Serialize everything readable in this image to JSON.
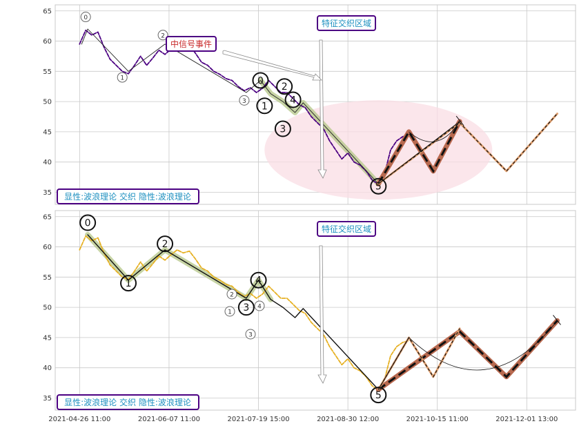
{
  "colors": {
    "grid": "#c8c8c8",
    "axis_frame": "#c8c8c8",
    "price_top": "#4b0082",
    "price_bottom": "#e6b022",
    "wave_fill": "#b9c98f",
    "salmon": "#f08080",
    "brown": "#b86a50",
    "dark_peach": "#e0a070",
    "badge_border": "#4b0082",
    "badge_text_blue": "#1e90c0",
    "badge_text_red": "#c82828",
    "ellipse": "#fadde4"
  },
  "x_tick_labels": [
    "2021-04-26 11:00",
    "2021-06-07 11:00",
    "2021-07-19 15:00",
    "2021-08-30 12:00",
    "2021-10-15 11:00",
    "2021-12-01 13:00"
  ],
  "y_tick_labels": [
    "35",
    "40",
    "45",
    "50",
    "55",
    "60",
    "65"
  ],
  "panels": [
    {
      "badge_feature": "特征交织区域",
      "badge_bottom": "显性:波浪理论 交织 隐性:波浪理论",
      "badge_signal": "中信号事件",
      "labels_small": [
        "0",
        "1",
        "2",
        "3"
      ],
      "labels_large": [
        "0",
        "1",
        "2",
        "3",
        "4",
        "5"
      ]
    },
    {
      "badge_feature": "特征交织区域",
      "badge_bottom": "显性:波浪理论 交织 隐性:波浪理论",
      "labels_large": [
        "0",
        "1",
        "2",
        "3",
        "4",
        "5"
      ],
      "labels_small": [
        "1",
        "2",
        "3",
        "4"
      ]
    }
  ],
  "chart_data": [
    {
      "type": "line",
      "panel": "top",
      "x_axis_labels": [
        "2021-04-26 11:00",
        "2021-06-07 11:00",
        "2021-07-19 15:00",
        "2021-08-30 12:00",
        "2021-10-15 11:00",
        "2021-12-01 13:00"
      ],
      "ylim": [
        33,
        66
      ],
      "yticks": [
        35,
        40,
        45,
        50,
        55,
        60,
        65
      ],
      "grid": true,
      "series": [
        {
          "name": "",
          "style": "price-dashed-purple",
          "points": [
            [
              0.0,
              59.5
            ],
            [
              1.5,
              61.8
            ],
            [
              3,
              61
            ],
            [
              4.5,
              61.5
            ],
            [
              6,
              59
            ],
            [
              7.5,
              57
            ],
            [
              9,
              56
            ],
            [
              10.5,
              55
            ],
            [
              12,
              54.6
            ],
            [
              13.5,
              56
            ],
            [
              15,
              57.5
            ],
            [
              16.5,
              56
            ],
            [
              18,
              57.2
            ],
            [
              19.5,
              58.5
            ],
            [
              21,
              57.8
            ],
            [
              22.5,
              58.7
            ],
            [
              24,
              59.5
            ],
            [
              25.5,
              59
            ],
            [
              27,
              59.3
            ],
            [
              28.5,
              58
            ],
            [
              30,
              56.5
            ],
            [
              31.5,
              56
            ],
            [
              33,
              55
            ],
            [
              34.5,
              54.5
            ],
            [
              36,
              53.8
            ],
            [
              37.5,
              53.5
            ],
            [
              39,
              52.5
            ],
            [
              40.5,
              51.8
            ],
            [
              42,
              52.3
            ],
            [
              43.5,
              51.5
            ],
            [
              45,
              52.2
            ],
            [
              46.5,
              53.5
            ],
            [
              48,
              52.5
            ],
            [
              49.5,
              51.5
            ],
            [
              51,
              51.5
            ],
            [
              52.5,
              50.5
            ],
            [
              54,
              49.5
            ],
            [
              55.5,
              49
            ],
            [
              57,
              47.5
            ],
            [
              58.5,
              46.5
            ],
            [
              60,
              45.5
            ],
            [
              61.5,
              43.5
            ],
            [
              63,
              42
            ],
            [
              64.5,
              40.5
            ],
            [
              66,
              41.5
            ],
            [
              67.5,
              40
            ],
            [
              69,
              39.5
            ],
            [
              70.5,
              38.5
            ],
            [
              72,
              37
            ],
            [
              73.5,
              36.3
            ],
            [
              75,
              38
            ],
            [
              76.5,
              42
            ],
            [
              78,
              43.5
            ],
            [
              79.5,
              44.2
            ],
            [
              81,
              44.5
            ]
          ]
        },
        {
          "name": "",
          "style": "wave-line-top",
          "points": [
            [
              0.5,
              59.5
            ],
            [
              2,
              62
            ],
            [
              12,
              55
            ],
            [
              21,
              59.5
            ],
            [
              41,
              51.5
            ],
            [
              44.5,
              53.5
            ],
            [
              47,
              51.3
            ],
            [
              50,
              50
            ],
            [
              53,
              48.2
            ],
            [
              55,
              49.8
            ],
            [
              73.5,
              36.4
            ]
          ]
        },
        {
          "name": "",
          "style": "wave-thick-small-top",
          "points": [
            [
              44.5,
              53.5
            ],
            [
              47,
              51.3
            ],
            [
              50,
              50
            ],
            [
              53,
              48.2
            ],
            [
              55,
              49.8
            ],
            [
              73.5,
              36.4
            ]
          ]
        },
        {
          "name": "",
          "style": "salmon-thick",
          "points": [
            [
              73.5,
              36.4
            ],
            [
              81,
              45
            ],
            [
              87,
              38.5
            ],
            [
              93.5,
              46.7
            ]
          ]
        },
        {
          "name": "",
          "style": "brown-dashed-thick",
          "points": [
            [
              73.5,
              36.4
            ],
            [
              81,
              45
            ],
            [
              87,
              38.5
            ],
            [
              93.5,
              46.7
            ]
          ]
        },
        {
          "name": "",
          "style": "peach-dashed",
          "points": [
            [
              73.5,
              36.4
            ],
            [
              93.5,
              46.5
            ],
            [
              105,
              38.5
            ],
            [
              117.5,
              48
            ]
          ]
        },
        {
          "name": "",
          "style": "thin-black",
          "points": [
            [
              73.5,
              36.4
            ],
            [
              93.5,
              46.7
            ]
          ]
        }
      ],
      "annotations": [
        "特征交织区域",
        "中信号事件",
        "显性:波浪理论 交织 隐性:波浪理论"
      ]
    },
    {
      "type": "line",
      "panel": "bottom",
      "x_axis_labels": [
        "2021-04-26 11:00",
        "2021-06-07 11:00",
        "2021-07-19 15:00",
        "2021-08-30 12:00",
        "2021-10-15 11:00",
        "2021-12-01 13:00"
      ],
      "ylim": [
        33,
        66
      ],
      "yticks": [
        35,
        40,
        45,
        50,
        55,
        60,
        65
      ],
      "grid": true,
      "series": [
        {
          "name": "",
          "style": "price-dashed-yellow",
          "points": [
            [
              0.0,
              59.5
            ],
            [
              1.5,
              61.8
            ],
            [
              3,
              61
            ],
            [
              4.5,
              61.5
            ],
            [
              6,
              59
            ],
            [
              7.5,
              57
            ],
            [
              9,
              56
            ],
            [
              10.5,
              55
            ],
            [
              12,
              54.6
            ],
            [
              13.5,
              56
            ],
            [
              15,
              57.5
            ],
            [
              16.5,
              56
            ],
            [
              18,
              57.2
            ],
            [
              19.5,
              58.5
            ],
            [
              21,
              57.8
            ],
            [
              22.5,
              58.7
            ],
            [
              24,
              59.5
            ],
            [
              25.5,
              59
            ],
            [
              27,
              59.3
            ],
            [
              28.5,
              58
            ],
            [
              30,
              56.5
            ],
            [
              31.5,
              56
            ],
            [
              33,
              55
            ],
            [
              34.5,
              54.5
            ],
            [
              36,
              53.8
            ],
            [
              37.5,
              53.5
            ],
            [
              39,
              52.5
            ],
            [
              40.5,
              51.8
            ],
            [
              42,
              52.3
            ],
            [
              43.5,
              51.5
            ],
            [
              45,
              52.2
            ],
            [
              46.5,
              53.5
            ],
            [
              48,
              52.5
            ],
            [
              49.5,
              51.5
            ],
            [
              51,
              51.5
            ],
            [
              52.5,
              50.5
            ],
            [
              54,
              49.5
            ],
            [
              55.5,
              49
            ],
            [
              57,
              47.5
            ],
            [
              58.5,
              46.5
            ],
            [
              60,
              45.5
            ],
            [
              61.5,
              43.5
            ],
            [
              63,
              42
            ],
            [
              64.5,
              40.5
            ],
            [
              66,
              41.5
            ],
            [
              67.5,
              40
            ],
            [
              69,
              39.5
            ],
            [
              70.5,
              38.5
            ],
            [
              72,
              37
            ],
            [
              73.5,
              36.3
            ],
            [
              75,
              38
            ],
            [
              76.5,
              42
            ],
            [
              78,
              43.5
            ],
            [
              79.5,
              44.2
            ],
            [
              81,
              44.5
            ]
          ]
        },
        {
          "name": "",
          "style": "wave-line-bottom",
          "points": [
            [
              2,
              62
            ],
            [
              12,
              54.5
            ],
            [
              21,
              59.5
            ],
            [
              41,
              51.5
            ],
            [
              44,
              54.5
            ],
            [
              47,
              51.3
            ],
            [
              50,
              50
            ],
            [
              53,
              48.3
            ],
            [
              55,
              49.8
            ],
            [
              73.5,
              36.4
            ]
          ]
        },
        {
          "name": "",
          "style": "wave-thick-bottom",
          "points": [
            [
              2,
              62
            ],
            [
              12,
              54.5
            ],
            [
              21,
              59.5
            ],
            [
              41,
              51.5
            ],
            [
              44,
              54.5
            ],
            [
              47,
              51.3
            ]
          ]
        },
        {
          "name": "",
          "style": "salmon-thick",
          "points": [
            [
              73.5,
              36.4
            ],
            [
              93.5,
              46
            ]
          ]
        },
        {
          "name": "",
          "style": "brown-dashed-thick",
          "points": [
            [
              73.5,
              36.4
            ],
            [
              93.5,
              46
            ],
            [
              105,
              38.5
            ],
            [
              117.5,
              47.8
            ]
          ]
        },
        {
          "name": "",
          "style": "peach-dashed",
          "points": [
            [
              73.5,
              36.4
            ],
            [
              81,
              45
            ],
            [
              87,
              38.5
            ],
            [
              93.5,
              46.5
            ]
          ]
        },
        {
          "name": "",
          "style": "thin-black",
          "points": [
            [
              73.5,
              36.4
            ],
            [
              81,
              45
            ]
          ]
        }
      ],
      "annotations": [
        "特征交织区域",
        "显性:波浪理论 交织 隐性:波浪理论"
      ]
    }
  ]
}
